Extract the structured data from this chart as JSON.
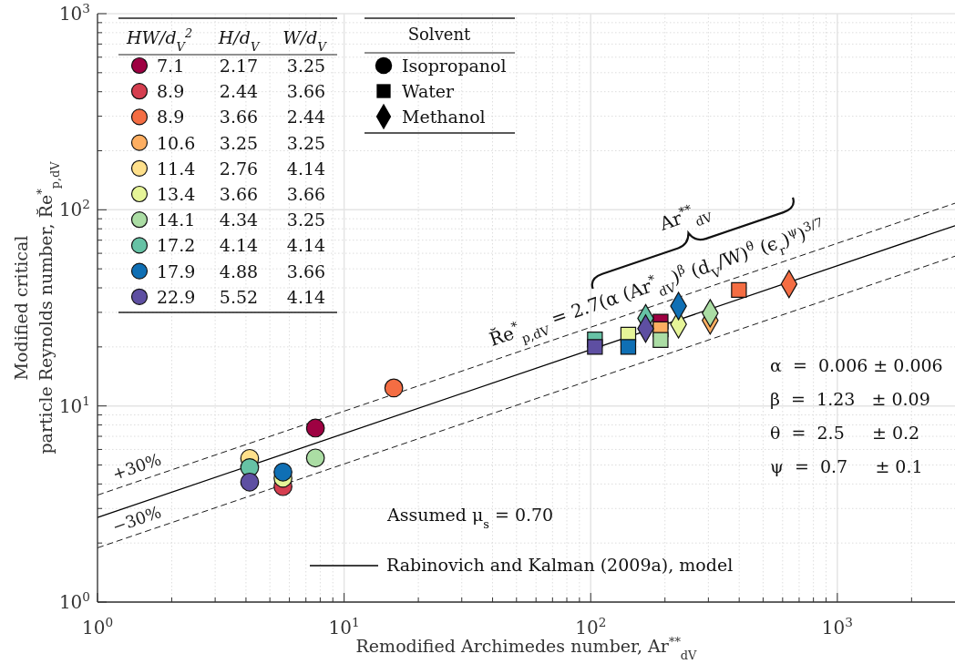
{
  "chart_data": {
    "type": "scatter",
    "xlabel": "Remodified Archimedes number, Ar$^{**}$$_{dV}$",
    "ylabel": "Modified critical\nparticle Reynolds number, R̆e$^{*}$$_{p,dV}$",
    "log": "xy",
    "grid": true,
    "legend": "bottom",
    "legend_title": "HW/d$_{V}$$^{2}$",
    "xlim": [
      1,
      3000
    ],
    "ylim": [
      1,
      1000
    ],
    "xticks": [
      {
        "value": 1,
        "label": "10$^{0}$"
      },
      {
        "value": 10,
        "label": "10$^{1}$"
      },
      {
        "value": 100,
        "label": "10$^{2}$"
      },
      {
        "value": 1000,
        "label": "10$^{3}$"
      }
    ],
    "yticks": [
      {
        "value": 1,
        "label": "10$^{0}$"
      },
      {
        "value": 10,
        "label": "10$^{1}$"
      },
      {
        "value": 100,
        "label": "10$^{2}$"
      },
      {
        "value": 1000,
        "label": "10$^{3}$"
      }
    ],
    "series": [
      {
        "name": "7.1",
        "color": "#9e0142",
        "x": [
          7.65,
          192
        ],
        "values": [
          7.71,
          26.9
        ],
        "marker": [
          "circle",
          "square"
        ]
      },
      {
        "name": "8.9",
        "color": "#d53e4f",
        "x": [
          5.65
        ],
        "values": [
          3.88
        ],
        "marker": [
          "circle"
        ]
      },
      {
        "name": "8.9",
        "color": "#f46d43",
        "x": [
          15.9,
          399,
          637
        ],
        "values": [
          12.35,
          39.0,
          41.8
        ],
        "marker": [
          "circle",
          "square",
          "diamond"
        ]
      },
      {
        "name": "10.6",
        "color": "#fdae61",
        "x": [
          192,
          305
        ],
        "values": [
          24.6,
          27.3
        ],
        "marker": [
          "square",
          "diamond"
        ]
      },
      {
        "name": "11.4",
        "color": "#fee08b",
        "x": [
          4.14
        ],
        "values": [
          5.4
        ],
        "marker": [
          "circle"
        ]
      },
      {
        "name": "13.4",
        "color": "#e6f598",
        "x": [
          5.65,
          142,
          227
        ],
        "values": [
          4.28,
          23.1,
          26.1
        ],
        "marker": [
          "circle",
          "square",
          "diamond"
        ]
      },
      {
        "name": "14.1",
        "color": "#abdda4",
        "x": [
          7.65,
          192,
          305
        ],
        "values": [
          5.43,
          21.7,
          29.7
        ],
        "marker": [
          "circle",
          "square",
          "diamond"
        ]
      },
      {
        "name": "17.2",
        "color": "#66c2a5",
        "x": [
          4.14,
          104,
          167
        ],
        "values": [
          4.85,
          21.8,
          28.0
        ],
        "marker": [
          "circle",
          "square",
          "diamond"
        ]
      },
      {
        "name": "17.9",
        "color": "#0f6fb4",
        "x": [
          5.65,
          142,
          227
        ],
        "values": [
          4.6,
          20.0,
          32.3
        ],
        "marker": [
          "circle",
          "square",
          "diamond"
        ]
      },
      {
        "name": "22.9",
        "color": "#5e4fa2",
        "x": [
          4.14,
          104,
          167
        ],
        "values": [
          4.09,
          20.0,
          24.8
        ],
        "marker": [
          "circle",
          "square",
          "diamond"
        ]
      },
      {
        "type": "line",
        "name": "Rabinovich and Kalman (2009a), model",
        "color": "#000000",
        "x": [
          1,
          3000
        ],
        "values": [
          2.7,
          83
        ],
        "line_style": "solid"
      },
      {
        "type": "line",
        "color": "#000000",
        "x": [
          1,
          3000
        ],
        "values": [
          3.51,
          108
        ],
        "line_style": "dashed"
      },
      {
        "type": "line",
        "color": "#000000",
        "x": [
          1,
          3000
        ],
        "values": [
          1.89,
          58
        ],
        "line_style": "dashed"
      }
    ],
    "annotations": [
      "H/d$_{V}$",
      "W/d$_{V}$",
      "2.17",
      "3.25",
      "2.44",
      "3.66",
      "3.66",
      "2.44",
      "3.25",
      "3.25",
      "2.76",
      "4.14",
      "3.66",
      "3.66",
      "4.34",
      "3.25",
      "4.14",
      "4.14",
      "4.88",
      "3.66",
      "5.52",
      "4.14",
      "Solvent",
      "Isopropanol",
      "Water",
      "Methanol",
      "+30%",
      "−30%",
      "R̆e$^{*}$$_{p,dV}$ = 2.7(α (Ar$^{*}$$_{dV}$)$^{β}$ (d$_{V}$/W)$^{θ}$ (ϵ$_{r}$)$^{ψ}$)$^{3/7}$",
      "Ar$^{**}$$_{dV}$",
      "α  =  0.006 ± 0.006",
      "β  =  1.23   ± 0.09",
      "θ  =  2.5     ± 0.2",
      "ψ  =  0.7     ± 0.1",
      "Assumed μ$_{s}$ = 0.70"
    ]
  }
}
